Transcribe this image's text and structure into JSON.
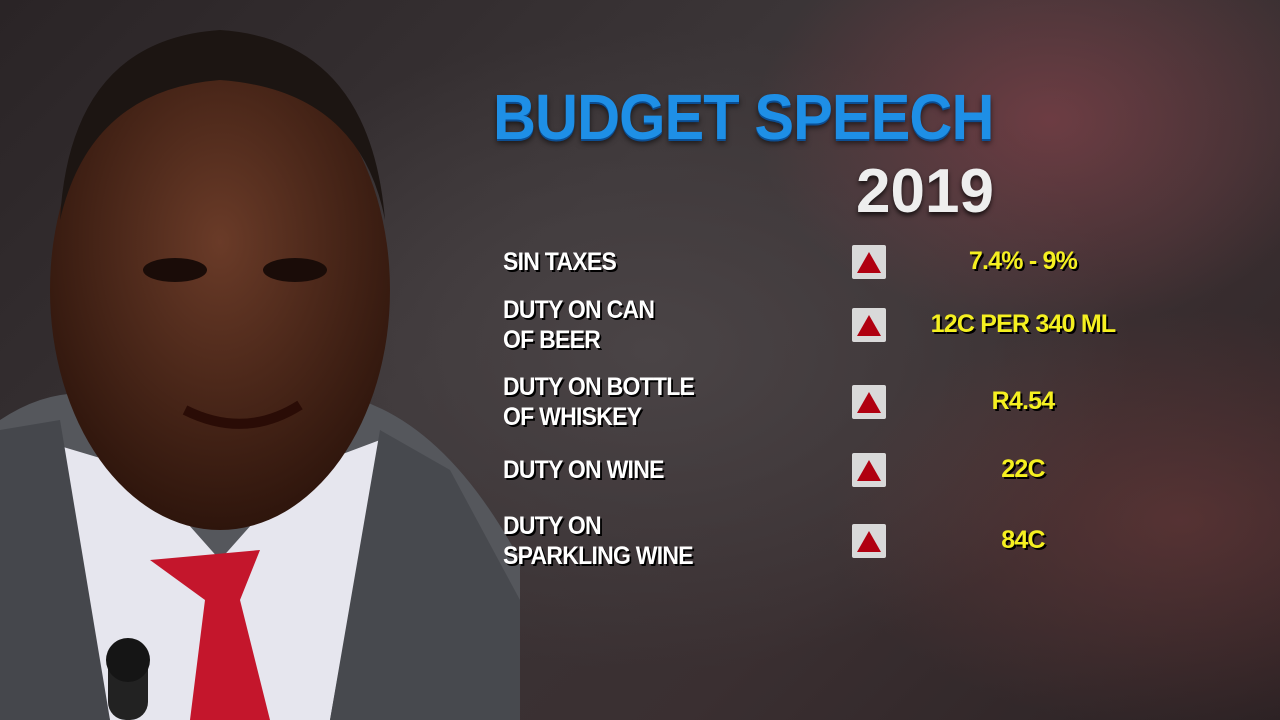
{
  "header": {
    "title": "BUDGET SPEECH",
    "year": "2019"
  },
  "colors": {
    "title": "#1e8fe6",
    "value": "#f5f020",
    "arrow": "#b00010"
  },
  "rows": [
    {
      "label_lines": [
        "SIN TAXES"
      ],
      "icon": "up-triangle-icon",
      "value": "7.4% - 9%"
    },
    {
      "label_lines": [
        "DUTY ON CAN",
        "OF BEER"
      ],
      "icon": "up-triangle-icon",
      "value": "12C PER 340 ML"
    },
    {
      "label_lines": [
        "DUTY ON BOTTLE",
        "OF WHISKEY"
      ],
      "icon": "up-triangle-icon",
      "value": "R4.54"
    },
    {
      "label_lines": [
        "DUTY ON WINE"
      ],
      "icon": "up-triangle-icon",
      "value": "22C"
    },
    {
      "label_lines": [
        "DUTY ON",
        "SPARKLING WINE"
      ],
      "icon": "up-triangle-icon",
      "value": "84C"
    }
  ]
}
